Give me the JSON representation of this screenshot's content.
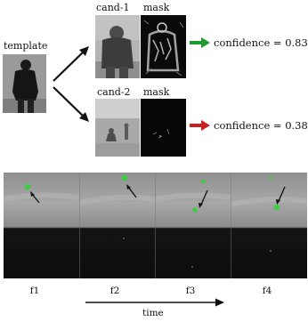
{
  "top": {
    "template_label": "template",
    "candidates": [
      {
        "name": "cand-1",
        "mask_label": "mask",
        "confidence_text": "confidence = 0.83",
        "arrow_color": "#1f9a2c"
      },
      {
        "name": "cand-2",
        "mask_label": "mask",
        "confidence_text": "confidence = 0.38",
        "arrow_color": "#c8201e"
      }
    ]
  },
  "bottom": {
    "frame_labels": [
      "f1",
      "f2",
      "f3",
      "f4"
    ],
    "time_label": "time",
    "marker_color": "#35d23a"
  }
}
